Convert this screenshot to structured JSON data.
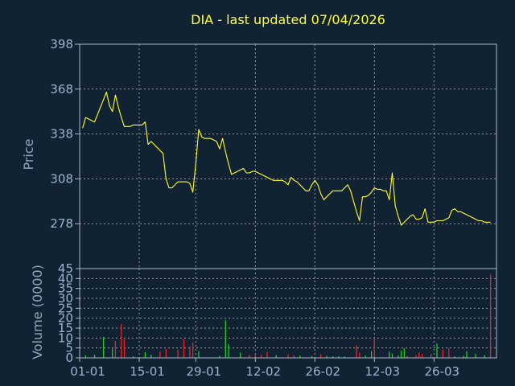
{
  "chart_data": {
    "type": "line",
    "title": "DIA - last updated 07/04/2026",
    "colors": {
      "background": "#112233",
      "axis": "#aabbcc",
      "grid": "#bbbbbb",
      "price_line": "#ffff33",
      "volume_up": "#22cc22",
      "volume_down": "#ee2222"
    },
    "price_panel": {
      "ylabel": "Price",
      "ylim": [
        248,
        398
      ],
      "y_ticks": [
        "398",
        "368",
        "338",
        "308",
        "278"
      ],
      "grid": true,
      "series": [
        {
          "x": [
            1,
            2,
            3,
            4,
            5,
            6,
            7,
            8,
            9,
            10,
            11,
            12,
            13,
            14,
            15,
            16,
            17,
            18,
            19,
            20,
            21,
            22,
            23,
            24,
            25,
            26,
            27,
            28,
            29,
            30,
            31,
            32,
            33,
            34,
            35,
            36,
            37,
            38,
            39,
            40,
            41,
            42,
            43,
            44,
            45,
            46,
            47,
            48,
            49,
            50,
            51,
            52,
            53,
            54,
            55,
            56,
            57,
            58,
            59,
            60,
            61,
            62,
            63,
            64,
            65,
            66,
            67,
            68,
            69,
            70,
            71,
            72,
            73,
            74,
            75,
            76,
            77,
            78,
            79,
            80,
            81,
            82,
            83,
            84,
            85,
            86,
            87,
            88,
            89,
            90,
            91,
            92,
            93,
            94,
            95,
            96,
            97,
            98,
            99,
            100,
            101,
            102,
            103,
            104,
            105,
            106,
            107,
            108,
            109,
            110,
            111,
            112,
            113,
            114,
            115,
            116,
            117,
            118,
            119,
            120,
            121,
            122,
            123,
            124,
            125,
            126,
            127,
            128,
            129,
            130,
            131,
            132,
            133,
            134,
            135,
            136,
            137,
            138
          ],
          "values": [
            342,
            349,
            348,
            347,
            346,
            351,
            356,
            361,
            366,
            357,
            353,
            364,
            356,
            349,
            343,
            343,
            343,
            344,
            344,
            344,
            344,
            346,
            331,
            333,
            331,
            329,
            327,
            325,
            308,
            302,
            302,
            304,
            306,
            306,
            306,
            306,
            305,
            299,
            318,
            341,
            336,
            335,
            335,
            335,
            334,
            333,
            328,
            335,
            326,
            318,
            311,
            312,
            313,
            314,
            315,
            312,
            312,
            313,
            313,
            312,
            311,
            310,
            309,
            308,
            307,
            307,
            307,
            307,
            306,
            304,
            309,
            307,
            306,
            304,
            302,
            300,
            300,
            304,
            307,
            304,
            298,
            294,
            296,
            298,
            300,
            300,
            300,
            300,
            302,
            304,
            300,
            293,
            286,
            280,
            296,
            296,
            297,
            299,
            302,
            301,
            301,
            300,
            300,
            294,
            312,
            290,
            283,
            277,
            279,
            281,
            283,
            284,
            281,
            281,
            282,
            288,
            279,
            279,
            279,
            280,
            280,
            280,
            281,
            282,
            287,
            288,
            286,
            286,
            285,
            284,
            283,
            282,
            281,
            280,
            280,
            279,
            279,
            279
          ]
        }
      ]
    },
    "volume_panel": {
      "ylabel": "Volume (0000)",
      "ylim": [
        0,
        45
      ],
      "y_ticks": [
        "45",
        "40",
        "35",
        "30",
        "25",
        "20",
        "15",
        "10",
        "5",
        "0"
      ],
      "grid": true,
      "bars": [
        {
          "x": 2,
          "v": 1.3,
          "up": true
        },
        {
          "x": 5,
          "v": 1.6,
          "up": true
        },
        {
          "x": 8,
          "v": 10.5,
          "up": true
        },
        {
          "x": 11,
          "v": 4.6,
          "up": true
        },
        {
          "x": 12,
          "v": 8.5,
          "up": false
        },
        {
          "x": 14,
          "v": 17.1,
          "up": false
        },
        {
          "x": 15,
          "v": 9.3,
          "up": false
        },
        {
          "x": 18,
          "v": 0.8,
          "up": true
        },
        {
          "x": 22,
          "v": 2.8,
          "up": true
        },
        {
          "x": 24,
          "v": 1.6,
          "up": true
        },
        {
          "x": 27,
          "v": 3.1,
          "up": false
        },
        {
          "x": 29,
          "v": 4.4,
          "up": false
        },
        {
          "x": 33,
          "v": 4.1,
          "up": false
        },
        {
          "x": 35,
          "v": 9.3,
          "up": false
        },
        {
          "x": 37,
          "v": 5.7,
          "up": false
        },
        {
          "x": 38,
          "v": 7.7,
          "up": false
        },
        {
          "x": 40,
          "v": 3.4,
          "up": true
        },
        {
          "x": 47,
          "v": 1.0,
          "up": true
        },
        {
          "x": 49,
          "v": 19.0,
          "up": true
        },
        {
          "x": 50,
          "v": 6.8,
          "up": true
        },
        {
          "x": 54,
          "v": 2.7,
          "up": true
        },
        {
          "x": 57,
          "v": 1.4,
          "up": false
        },
        {
          "x": 59,
          "v": 2.2,
          "up": false
        },
        {
          "x": 61,
          "v": 1.7,
          "up": false
        },
        {
          "x": 63,
          "v": 3.0,
          "up": false
        },
        {
          "x": 66,
          "v": 1.4,
          "up": true
        },
        {
          "x": 70,
          "v": 1.8,
          "up": false
        },
        {
          "x": 72,
          "v": 1.2,
          "up": false
        },
        {
          "x": 74,
          "v": 1.2,
          "up": true
        },
        {
          "x": 78,
          "v": 0.9,
          "up": true
        },
        {
          "x": 81,
          "v": 1.8,
          "up": false
        },
        {
          "x": 83,
          "v": 1.0,
          "up": true
        },
        {
          "x": 85,
          "v": 0.8,
          "up": true
        },
        {
          "x": 87,
          "v": 0.8,
          "up": true
        },
        {
          "x": 89,
          "v": 0.7,
          "up": true
        },
        {
          "x": 93,
          "v": 6.5,
          "up": false
        },
        {
          "x": 94,
          "v": 2.6,
          "up": false
        },
        {
          "x": 96,
          "v": 1.2,
          "up": true
        },
        {
          "x": 98,
          "v": 3.4,
          "up": true
        },
        {
          "x": 99,
          "v": 10.3,
          "up": false
        },
        {
          "x": 104,
          "v": 3.1,
          "up": true
        },
        {
          "x": 105,
          "v": 2.2,
          "up": true
        },
        {
          "x": 107,
          "v": 1.3,
          "up": true
        },
        {
          "x": 108,
          "v": 3.6,
          "up": true
        },
        {
          "x": 109,
          "v": 4.8,
          "up": true
        },
        {
          "x": 110,
          "v": 1.0,
          "up": false
        },
        {
          "x": 113,
          "v": 1.3,
          "up": false
        },
        {
          "x": 114,
          "v": 2.7,
          "up": false
        },
        {
          "x": 115,
          "v": 2.0,
          "up": false
        },
        {
          "x": 118,
          "v": 2.0,
          "up": false
        },
        {
          "x": 120,
          "v": 7.2,
          "up": true
        },
        {
          "x": 122,
          "v": 4.2,
          "up": false
        },
        {
          "x": 124,
          "v": 4.9,
          "up": false
        },
        {
          "x": 126,
          "v": 0.8,
          "up": true
        },
        {
          "x": 129,
          "v": 1.0,
          "up": true
        },
        {
          "x": 130,
          "v": 3.3,
          "up": true
        },
        {
          "x": 133,
          "v": 2.1,
          "up": true
        },
        {
          "x": 136,
          "v": 1.3,
          "up": true
        },
        {
          "x": 138,
          "v": 42.0,
          "up": false
        }
      ]
    },
    "x_ticks": [
      {
        "x": 0,
        "label": "01-01"
      },
      {
        "x": 20,
        "label": "15-01"
      },
      {
        "x": 39,
        "label": "29-01"
      },
      {
        "x": 59,
        "label": "12-02"
      },
      {
        "x": 79,
        "label": "26-02"
      },
      {
        "x": 99,
        "label": "12-03"
      },
      {
        "x": 119,
        "label": "26-03"
      }
    ],
    "x_range": [
      0,
      140
    ]
  }
}
